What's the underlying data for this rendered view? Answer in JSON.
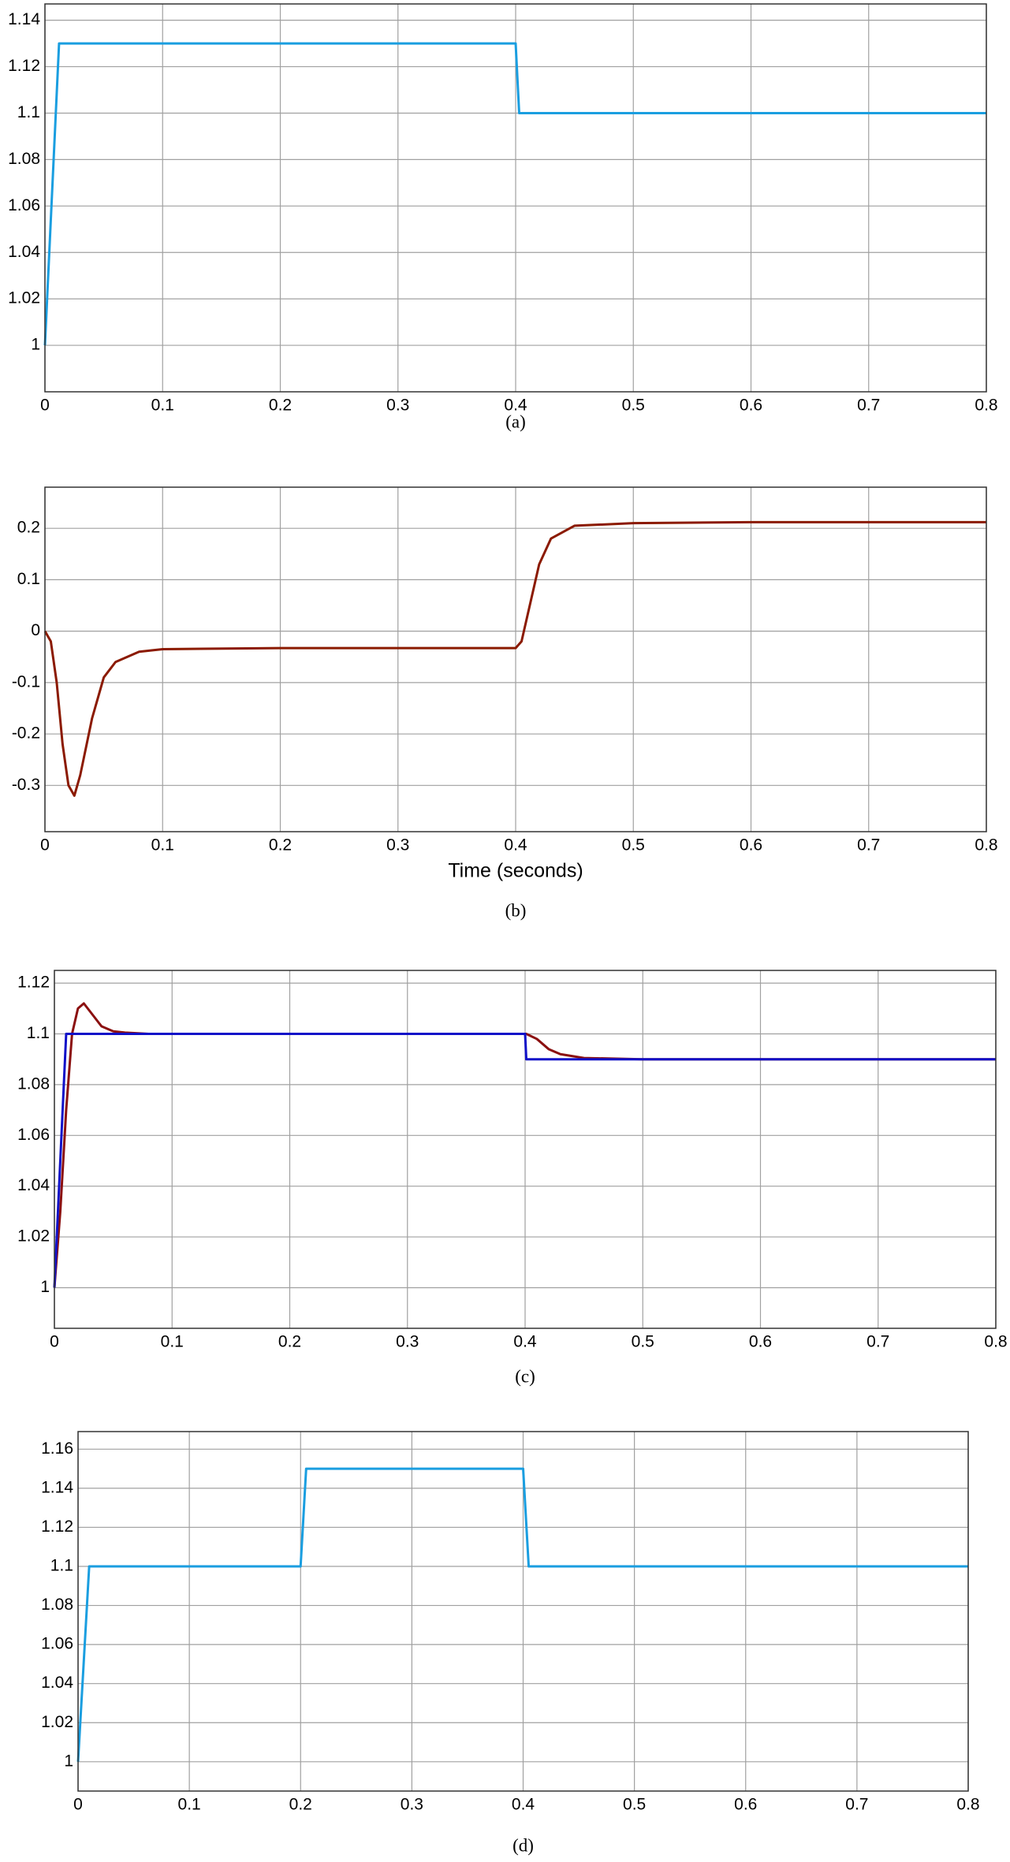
{
  "chart_data": [
    {
      "type": "line",
      "caption": "(a)",
      "x": [
        0,
        0.012,
        0.4,
        0.403,
        0.8
      ],
      "series": [
        {
          "color": "#1a9ee0",
          "values": [
            1,
            1.13,
            1.13,
            1.1,
            1.1
          ]
        }
      ],
      "xlim": [
        0,
        0.8
      ],
      "xticks": [
        0,
        0.1,
        0.2,
        0.3,
        0.4,
        0.5,
        0.6,
        0.7,
        0.8
      ],
      "ylim": [
        0.98,
        1.147
      ],
      "yticks": [
        1,
        1.02,
        1.04,
        1.06,
        1.08,
        1.1,
        1.12,
        1.14
      ],
      "grid": true
    },
    {
      "type": "line",
      "caption": "(b)",
      "xlabel": "Time (seconds)",
      "x": [
        0,
        0.005,
        0.01,
        0.015,
        0.02,
        0.025,
        0.03,
        0.04,
        0.05,
        0.06,
        0.08,
        0.1,
        0.2,
        0.3,
        0.4,
        0.405,
        0.41,
        0.42,
        0.43,
        0.45,
        0.5,
        0.6,
        0.8
      ],
      "series": [
        {
          "color": "#8b1a00",
          "values": [
            0,
            -0.02,
            -0.1,
            -0.22,
            -0.3,
            -0.32,
            -0.28,
            -0.17,
            -0.09,
            -0.06,
            -0.04,
            -0.035,
            -0.033,
            -0.033,
            -0.033,
            -0.02,
            0.03,
            0.13,
            0.18,
            0.205,
            0.21,
            0.212,
            0.212
          ]
        }
      ],
      "xlim": [
        0,
        0.8
      ],
      "xticks": [
        0,
        0.1,
        0.2,
        0.3,
        0.4,
        0.5,
        0.6,
        0.7,
        0.8
      ],
      "ylim": [
        -0.39,
        0.28
      ],
      "yticks": [
        -0.3,
        -0.2,
        -0.1,
        0,
        0.1,
        0.2
      ],
      "grid": true
    },
    {
      "type": "line",
      "caption": "(c)",
      "x": [
        0,
        0.005,
        0.01,
        0.015,
        0.02,
        0.025,
        0.03,
        0.04,
        0.05,
        0.06,
        0.08,
        0.1,
        0.2,
        0.3,
        0.4,
        0.401,
        0.41,
        0.42,
        0.43,
        0.45,
        0.5,
        0.6,
        0.7,
        0.8
      ],
      "series": [
        {
          "color": "#8b1010",
          "values": [
            1,
            1.03,
            1.07,
            1.1,
            1.11,
            1.112,
            1.109,
            1.103,
            1.101,
            1.1005,
            1.1,
            1.1,
            1.1,
            1.1,
            1.1,
            1.1,
            1.098,
            1.094,
            1.092,
            1.0905,
            1.09,
            1.09,
            1.09,
            1.09
          ]
        },
        {
          "color": "#1010c8",
          "values": [
            1,
            1.05,
            1.1,
            1.1,
            1.1,
            1.1,
            1.1,
            1.1,
            1.1,
            1.1,
            1.1,
            1.1,
            1.1,
            1.1,
            1.1,
            1.09,
            1.09,
            1.09,
            1.09,
            1.09,
            1.09,
            1.09,
            1.09,
            1.09
          ]
        }
      ],
      "xlim": [
        0,
        0.8
      ],
      "xticks": [
        0,
        0.1,
        0.2,
        0.3,
        0.4,
        0.5,
        0.6,
        0.7,
        0.8
      ],
      "ylim": [
        0.984,
        1.125
      ],
      "yticks": [
        1,
        1.02,
        1.04,
        1.06,
        1.08,
        1.1,
        1.12
      ],
      "grid": true
    },
    {
      "type": "line",
      "caption": "(d)",
      "x": [
        0,
        0.01,
        0.2,
        0.205,
        0.4,
        0.405,
        0.8
      ],
      "series": [
        {
          "color": "#1a9ee0",
          "values": [
            1,
            1.1,
            1.1,
            1.15,
            1.15,
            1.1,
            1.1
          ]
        }
      ],
      "xlim": [
        0,
        0.8
      ],
      "xticks": [
        0,
        0.1,
        0.2,
        0.3,
        0.4,
        0.5,
        0.6,
        0.7,
        0.8
      ],
      "ylim": [
        0.985,
        1.169
      ],
      "yticks": [
        1,
        1.02,
        1.04,
        1.06,
        1.08,
        1.1,
        1.12,
        1.14,
        1.16
      ],
      "grid": true
    }
  ]
}
